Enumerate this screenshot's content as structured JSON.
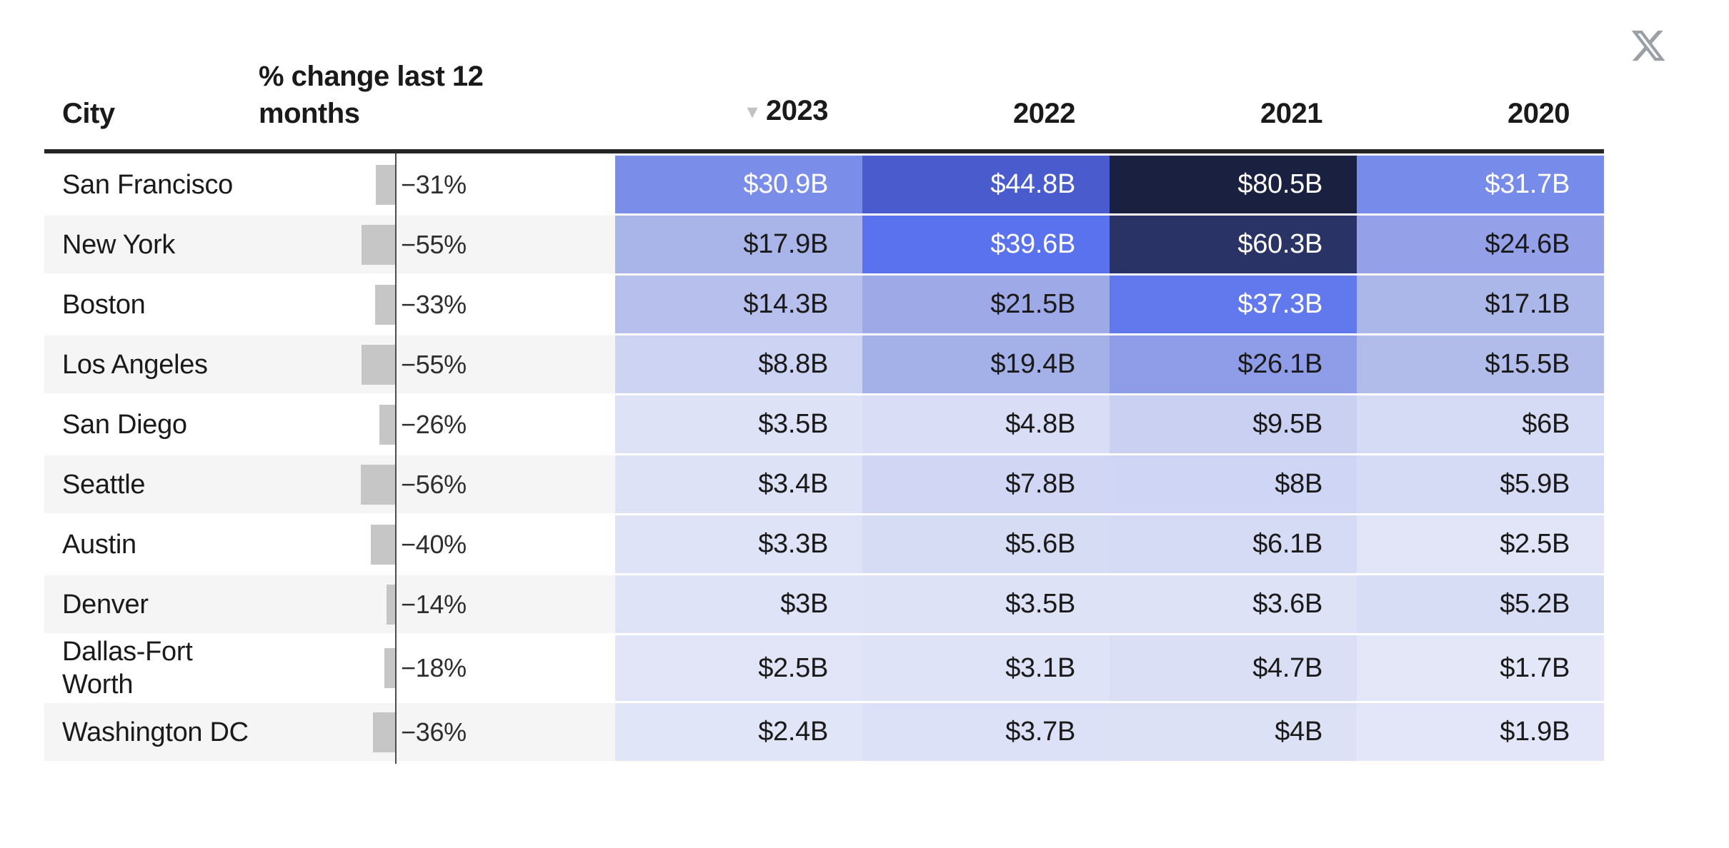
{
  "page": {
    "background": "#ffffff"
  },
  "share": {
    "icon": "x-logo",
    "color": "#9aa0a5"
  },
  "table": {
    "columns": {
      "city_label": "City",
      "pct_label": "% change last 12 months",
      "years": [
        "2023",
        "2022",
        "2021",
        "2020"
      ],
      "sorted_year": "2023",
      "sort_icon": "▾"
    },
    "rows": [
      {
        "city": "San Francisco",
        "pct_display": "−31%",
        "pct_value": 31,
        "values": [
          30.9,
          44.8,
          80.5,
          31.7
        ],
        "values_display": [
          "$30.9B",
          "$44.8B",
          "$80.5B",
          "$31.7B"
        ]
      },
      {
        "city": "New York",
        "pct_display": "−55%",
        "pct_value": 55,
        "values": [
          17.9,
          39.6,
          60.3,
          24.6
        ],
        "values_display": [
          "$17.9B",
          "$39.6B",
          "$60.3B",
          "$24.6B"
        ]
      },
      {
        "city": "Boston",
        "pct_display": "−33%",
        "pct_value": 33,
        "values": [
          14.3,
          21.5,
          37.3,
          17.1
        ],
        "values_display": [
          "$14.3B",
          "$21.5B",
          "$37.3B",
          "$17.1B"
        ]
      },
      {
        "city": "Los Angeles",
        "pct_display": "−55%",
        "pct_value": 55,
        "values": [
          8.8,
          19.4,
          26.1,
          15.5
        ],
        "values_display": [
          "$8.8B",
          "$19.4B",
          "$26.1B",
          "$15.5B"
        ]
      },
      {
        "city": "San Diego",
        "pct_display": "−26%",
        "pct_value": 26,
        "values": [
          3.5,
          4.8,
          9.5,
          6
        ],
        "values_display": [
          "$3.5B",
          "$4.8B",
          "$9.5B",
          "$6B"
        ]
      },
      {
        "city": "Seattle",
        "pct_display": "−56%",
        "pct_value": 56,
        "values": [
          3.4,
          7.8,
          8,
          5.9
        ],
        "values_display": [
          "$3.4B",
          "$7.8B",
          "$8B",
          "$5.9B"
        ]
      },
      {
        "city": "Austin",
        "pct_display": "−40%",
        "pct_value": 40,
        "values": [
          3.3,
          5.6,
          6.1,
          2.5
        ],
        "values_display": [
          "$3.3B",
          "$5.6B",
          "$6.1B",
          "$2.5B"
        ]
      },
      {
        "city": "Denver",
        "pct_display": "−14%",
        "pct_value": 14,
        "values": [
          3,
          3.5,
          3.6,
          5.2
        ],
        "values_display": [
          "$3B",
          "$3.5B",
          "$3.6B",
          "$5.2B"
        ]
      },
      {
        "city": "Dallas-Fort Worth",
        "pct_display": "−18%",
        "pct_value": 18,
        "values": [
          2.5,
          3.1,
          4.7,
          1.7
        ],
        "values_display": [
          "$2.5B",
          "$3.1B",
          "$4.7B",
          "$1.7B"
        ]
      },
      {
        "city": "Washington DC",
        "pct_display": "−36%",
        "pct_value": 36,
        "values": [
          2.4,
          3.7,
          4,
          1.9
        ],
        "values_display": [
          "$2.4B",
          "$3.7B",
          "$4B",
          "$1.9B"
        ]
      }
    ],
    "heatmap": {
      "stops": [
        [
          0,
          "#eef0fb"
        ],
        [
          1.7,
          "#e3e7f8"
        ],
        [
          7.8,
          "#d0d6f4"
        ],
        [
          17.9,
          "#a9b4e8"
        ],
        [
          26.1,
          "#8f9de8"
        ],
        [
          30.9,
          "#7a8ee9"
        ],
        [
          37.3,
          "#6279ee"
        ],
        [
          39.6,
          "#5b72ef"
        ],
        [
          44.8,
          "#4a5ccd"
        ],
        [
          60.3,
          "#2a3366"
        ],
        [
          80.5,
          "#1a2040"
        ]
      ],
      "white_text_min": 30,
      "dark_text_color": "#1a1a1a",
      "light_text_color": "#ffffff"
    },
    "bar_color": "#c6c6c6",
    "axis_color": "#4d4d4d",
    "alt_row_bg": "#f5f5f5",
    "header_rule_color": "#262626"
  },
  "chart_data": {
    "type": "table",
    "subtype": "heatmap-table-with-bars",
    "columns": [
      "City",
      "% change last 12 months",
      "2023",
      "2022",
      "2021",
      "2020"
    ],
    "sorted_by": "2023",
    "sort_direction": "descending",
    "unit": "USD billions",
    "rows": [
      {
        "city": "San Francisco",
        "pct_change_12mo": -31,
        "2023": 30.9,
        "2022": 44.8,
        "2021": 80.5,
        "2020": 31.7
      },
      {
        "city": "New York",
        "pct_change_12mo": -55,
        "2023": 17.9,
        "2022": 39.6,
        "2021": 60.3,
        "2020": 24.6
      },
      {
        "city": "Boston",
        "pct_change_12mo": -33,
        "2023": 14.3,
        "2022": 21.5,
        "2021": 37.3,
        "2020": 17.1
      },
      {
        "city": "Los Angeles",
        "pct_change_12mo": -55,
        "2023": 8.8,
        "2022": 19.4,
        "2021": 26.1,
        "2020": 15.5
      },
      {
        "city": "San Diego",
        "pct_change_12mo": -26,
        "2023": 3.5,
        "2022": 4.8,
        "2021": 9.5,
        "2020": 6
      },
      {
        "city": "Seattle",
        "pct_change_12mo": -56,
        "2023": 3.4,
        "2022": 7.8,
        "2021": 8,
        "2020": 5.9
      },
      {
        "city": "Austin",
        "pct_change_12mo": -40,
        "2023": 3.3,
        "2022": 5.6,
        "2021": 6.1,
        "2020": 2.5
      },
      {
        "city": "Denver",
        "pct_change_12mo": -14,
        "2023": 3,
        "2022": 3.5,
        "2021": 3.6,
        "2020": 5.2
      },
      {
        "city": "Dallas-Fort Worth",
        "pct_change_12mo": -18,
        "2023": 2.5,
        "2022": 3.1,
        "2021": 4.7,
        "2020": 1.7
      },
      {
        "city": "Washington DC",
        "pct_change_12mo": -36,
        "2023": 2.4,
        "2022": 3.7,
        "2021": 4,
        "2020": 1.9
      }
    ]
  }
}
